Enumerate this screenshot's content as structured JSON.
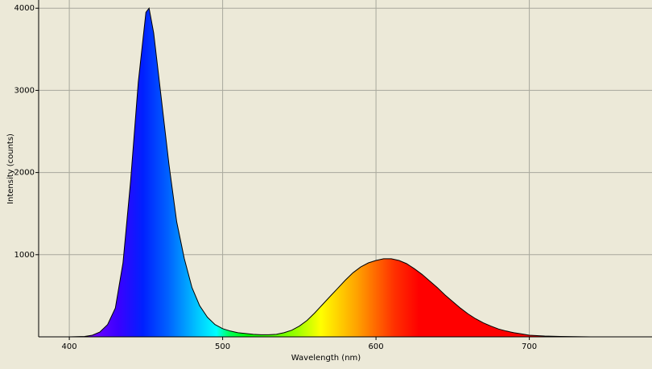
{
  "chart_data": {
    "type": "area",
    "x_label": "Wavelength (nm)",
    "y_label": "Intensity (counts)",
    "x": [
      380,
      400,
      410,
      415,
      420,
      425,
      430,
      435,
      440,
      445,
      450,
      452,
      455,
      460,
      465,
      470,
      475,
      480,
      485,
      490,
      495,
      500,
      505,
      510,
      515,
      520,
      525,
      530,
      535,
      540,
      545,
      550,
      555,
      560,
      565,
      570,
      575,
      580,
      585,
      590,
      595,
      600,
      605,
      610,
      615,
      620,
      625,
      630,
      635,
      640,
      645,
      650,
      655,
      660,
      665,
      670,
      675,
      680,
      685,
      690,
      695,
      700,
      710,
      720,
      740,
      760,
      780
    ],
    "values": [
      0,
      0,
      5,
      20,
      60,
      150,
      350,
      900,
      1900,
      3100,
      3950,
      4000,
      3700,
      2900,
      2100,
      1400,
      950,
      600,
      380,
      240,
      150,
      100,
      70,
      50,
      40,
      30,
      25,
      25,
      30,
      50,
      80,
      130,
      200,
      290,
      390,
      490,
      590,
      690,
      780,
      850,
      900,
      930,
      950,
      950,
      930,
      890,
      830,
      760,
      680,
      600,
      510,
      430,
      350,
      280,
      220,
      170,
      130,
      95,
      70,
      50,
      35,
      20,
      10,
      5,
      0,
      0,
      0
    ],
    "xlim": [
      380,
      780
    ],
    "ylim": [
      0,
      4100
    ],
    "xticks": [
      400,
      500,
      600,
      700
    ],
    "yticks": [
      1000,
      2000,
      3000,
      4000
    ],
    "grid": true,
    "color": "#000000"
  }
}
